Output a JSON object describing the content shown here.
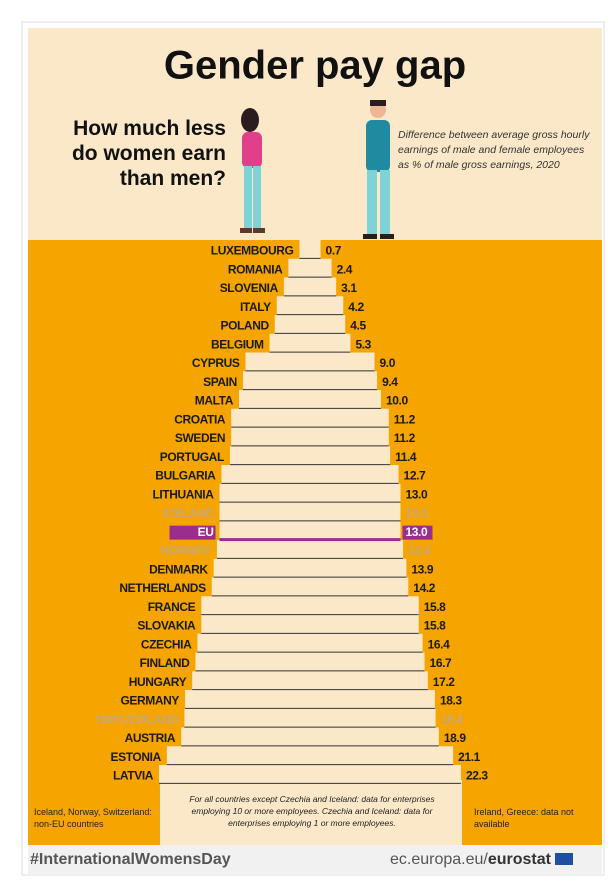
{
  "chart_data": {
    "type": "bar",
    "title": "Gender pay gap",
    "subtitle": "How much less do women earn than men?",
    "description": "Difference between average gross hourly earnings of male and female employees as % of male gross earnings, 2020",
    "categories": [
      "LUXEMBOURG",
      "ROMANIA",
      "SLOVENIA",
      "ITALY",
      "POLAND",
      "BELGIUM",
      "CYPRUS",
      "SPAIN",
      "MALTA",
      "CROATIA",
      "SWEDEN",
      "PORTUGAL",
      "BULGARIA",
      "LITHUANIA",
      "ICELAND",
      "EU",
      "NORWAY",
      "DENMARK",
      "NETHERLANDS",
      "FRANCE",
      "SLOVAKIA",
      "CZECHIA",
      "FINLAND",
      "HUNGARY",
      "GERMANY",
      "SWITZERLAND",
      "AUSTRIA",
      "ESTONIA",
      "LATVIA"
    ],
    "values": [
      0.7,
      2.4,
      3.1,
      4.2,
      4.5,
      5.3,
      9.0,
      9.4,
      10.0,
      11.2,
      11.2,
      11.4,
      12.7,
      13.0,
      13.0,
      13.0,
      13.4,
      13.9,
      14.2,
      15.8,
      15.8,
      16.4,
      16.7,
      17.2,
      18.3,
      18.4,
      18.9,
      21.1,
      22.3
    ],
    "value_labels": [
      "0.7",
      "2.4",
      "3.1",
      "4.2",
      "4.5",
      "5.3",
      "9.0",
      "9.4",
      "10.0",
      "11.2",
      "11.2",
      "11.4",
      "12.7",
      "13.0",
      "13.0",
      "13.0",
      "13.4",
      "13.9",
      "14.2",
      "15.8",
      "15.8",
      "16.4",
      "16.7",
      "17.2",
      "18.3",
      "18.4",
      "18.9",
      "21.1",
      "22.3"
    ],
    "colors": [
      "#1a1a1a",
      "#1a1a1a",
      "#1a1a1a",
      "#1a1a1a",
      "#1a1a1a",
      "#1a1a1a",
      "#1a1a1a",
      "#1a1a1a",
      "#1a1a1a",
      "#1a1a1a",
      "#1a1a1a",
      "#1a1a1a",
      "#1a1a1a",
      "#1a1a1a",
      "#c9a878",
      "#9b2d8e",
      "#c9a878",
      "#1a1a1a",
      "#1a1a1a",
      "#1a1a1a",
      "#1a1a1a",
      "#1a1a1a",
      "#1a1a1a",
      "#1a1a1a",
      "#1a1a1a",
      "#c9a878",
      "#1a1a1a",
      "#1a1a1a",
      "#1a1a1a"
    ],
    "notes": {
      "left": "Iceland, Norway, Switzerland: non-EU countries",
      "center": "For all countries except Czechia and Iceland: data for enterprises employing 10 or more employees. Czechia and Iceland: data for enterprises employing 1 or more employees.",
      "right": "Ireland, Greece: data not available"
    },
    "hashtag": "#InternationalWomensDay",
    "source": {
      "domain": "ec.europa.eu/",
      "brand": "eurostat"
    }
  }
}
